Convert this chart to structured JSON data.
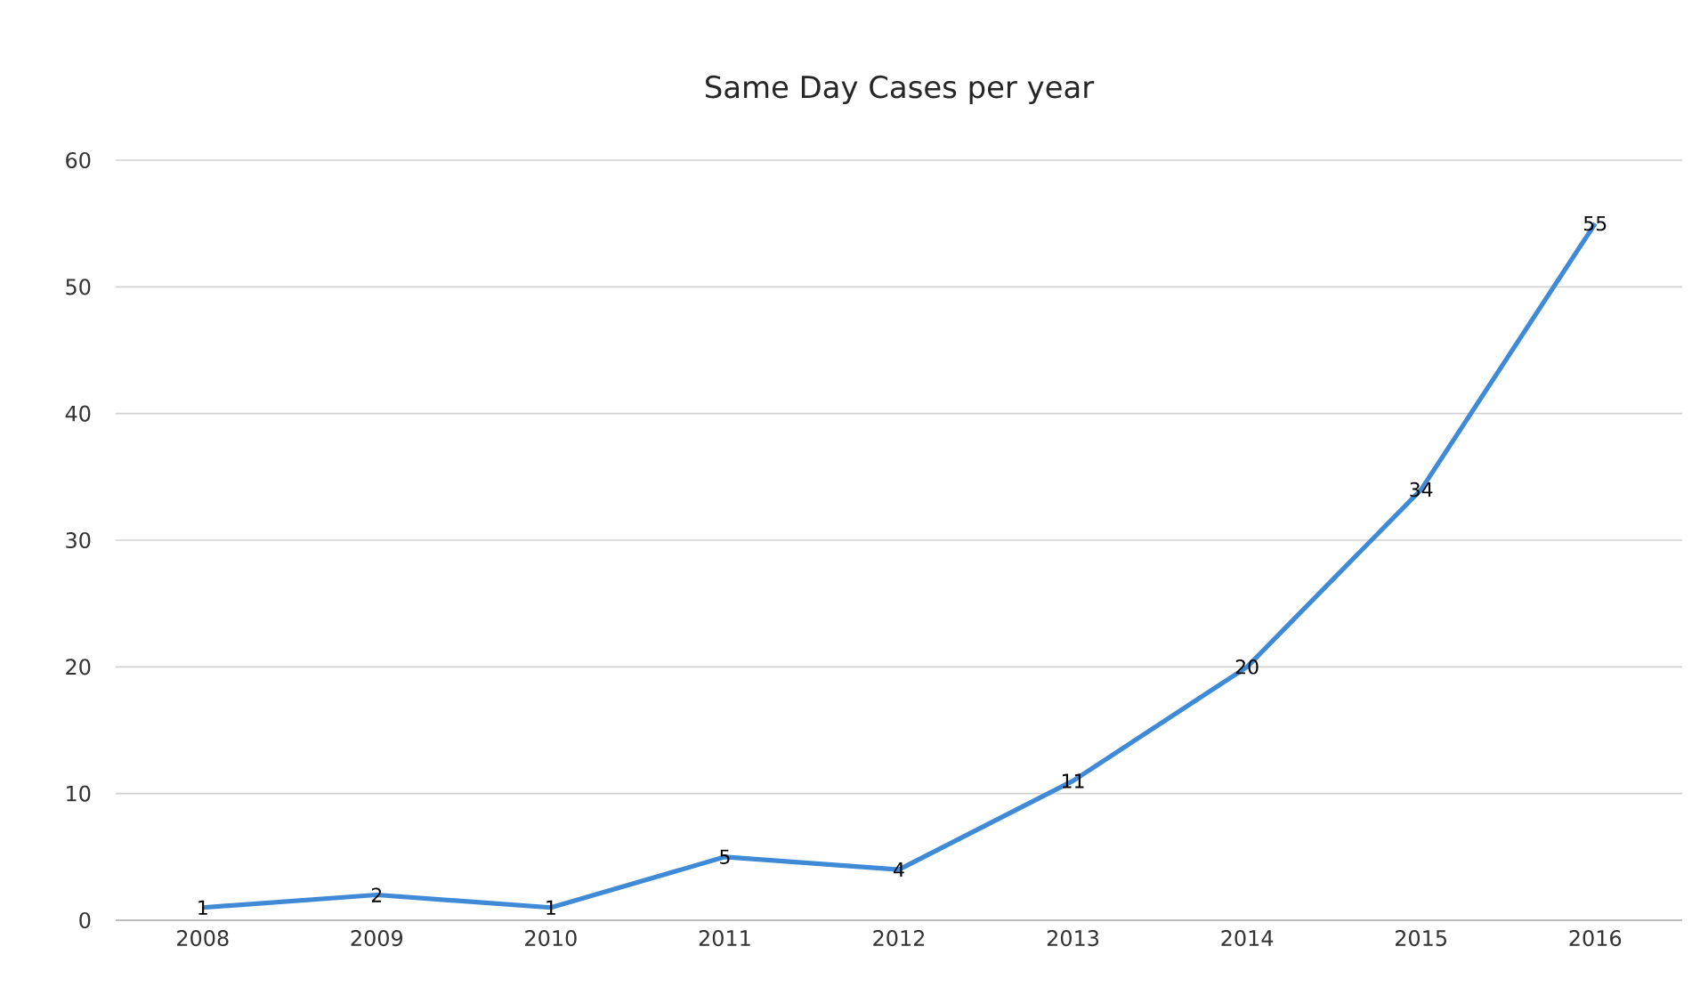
{
  "chart_data": {
    "type": "line",
    "title": "Same Day Cases per year",
    "categories": [
      "2008",
      "2009",
      "2010",
      "2011",
      "2012",
      "2013",
      "2014",
      "2015",
      "2016"
    ],
    "values": [
      1,
      2,
      1,
      5,
      4,
      11,
      20,
      34,
      55
    ],
    "color": "#3e8ad6",
    "ylim": [
      0,
      60
    ],
    "yticks": [
      0,
      10,
      20,
      30,
      40,
      50,
      60
    ],
    "grid": "y",
    "line_style": "solid",
    "data_labels": true
  }
}
